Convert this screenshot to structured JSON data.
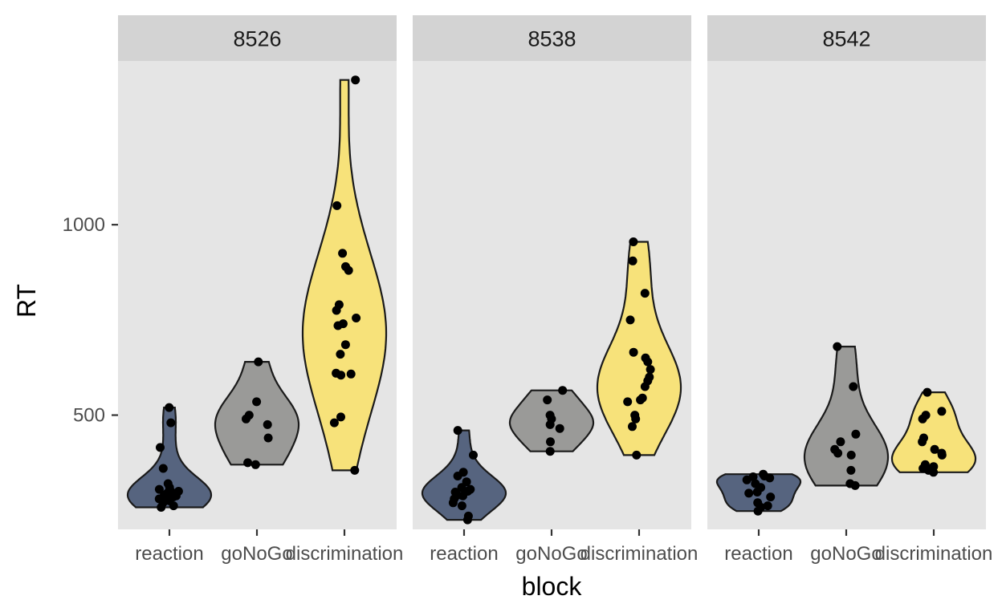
{
  "chart_data": {
    "type": "violin",
    "xlabel": "block",
    "ylabel": "RT",
    "ylim": [
      200,
      1430
    ],
    "yticks": [
      500,
      1000
    ],
    "yticklabels": [
      "500",
      "1000"
    ],
    "categories": [
      "reaction",
      "goNoGo",
      "discrimination"
    ],
    "category_colors": [
      "#56647f",
      "#9a9a98",
      "#f7e27a"
    ],
    "panel_background": "#e5e5e5",
    "strip_background": "#d3d3d3",
    "panels": [
      {
        "label": "8526",
        "groups": [
          {
            "category": "reaction",
            "values": [
              520,
              480,
              415,
              360,
              320,
              310,
              305,
              300,
              298,
              295,
              290,
              288,
              285,
              280,
              275,
              270,
              262,
              258
            ]
          },
          {
            "category": "goNoGo",
            "values": [
              640,
              535,
              500,
              490,
              475,
              440,
              375,
              370
            ]
          },
          {
            "category": "discrimination",
            "values": [
              1380,
              1050,
              925,
              890,
              880,
              790,
              775,
              755,
              740,
              735,
              685,
              660,
              610,
              608,
              605,
              495,
              480,
              355
            ]
          }
        ]
      },
      {
        "label": "8538",
        "groups": [
          {
            "category": "reaction",
            "values": [
              460,
              395,
              350,
              340,
              325,
              310,
              305,
              300,
              298,
              290,
              288,
              280,
              270,
              262,
              235,
              225
            ]
          },
          {
            "category": "goNoGo",
            "values": [
              565,
              540,
              500,
              490,
              475,
              465,
              430,
              405
            ]
          },
          {
            "category": "discrimination",
            "values": [
              955,
              905,
              820,
              750,
              665,
              650,
              640,
              620,
              600,
              590,
              575,
              545,
              540,
              535,
              500,
              490,
              470,
              395
            ]
          }
        ]
      },
      {
        "label": "8542",
        "groups": [
          {
            "category": "reaction",
            "values": [
              345,
              340,
              338,
              335,
              330,
              320,
              310,
              298,
              295,
              285,
              270,
              262,
              258,
              248
            ]
          },
          {
            "category": "goNoGo",
            "values": [
              680,
              575,
              450,
              430,
              410,
              400,
              395,
              355,
              320,
              315
            ]
          },
          {
            "category": "discrimination",
            "values": [
              560,
              510,
              500,
              490,
              440,
              430,
              410,
              400,
              395,
              370,
              365,
              360,
              355,
              350
            ]
          }
        ]
      }
    ]
  }
}
